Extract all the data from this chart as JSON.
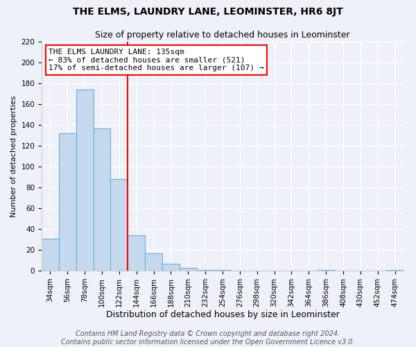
{
  "title": "THE ELMS, LAUNDRY LANE, LEOMINSTER, HR6 8JT",
  "subtitle": "Size of property relative to detached houses in Leominster",
  "xlabel": "Distribution of detached houses by size in Leominster",
  "ylabel": "Number of detached properties",
  "bar_labels": [
    "34sqm",
    "56sqm",
    "78sqm",
    "100sqm",
    "122sqm",
    "144sqm",
    "166sqm",
    "188sqm",
    "210sqm",
    "232sqm",
    "254sqm",
    "276sqm",
    "298sqm",
    "320sqm",
    "342sqm",
    "364sqm",
    "386sqm",
    "408sqm",
    "430sqm",
    "452sqm",
    "474sqm"
  ],
  "bar_values": [
    31,
    132,
    174,
    137,
    88,
    34,
    17,
    7,
    3,
    1,
    1,
    0,
    0,
    0,
    0,
    0,
    1,
    0,
    0,
    0,
    1
  ],
  "bar_color": "#c5d9ee",
  "bar_edge_color": "#6baed6",
  "vline_x": 4.5,
  "vline_color": "red",
  "ylim": [
    0,
    220
  ],
  "yticks": [
    0,
    20,
    40,
    60,
    80,
    100,
    120,
    140,
    160,
    180,
    200,
    220
  ],
  "annotation_title": "THE ELMS LAUNDRY LANE: 135sqm",
  "annotation_line1": "← 83% of detached houses are smaller (521)",
  "annotation_line2": "17% of semi-detached houses are larger (107) →",
  "annotation_box_color": "white",
  "annotation_box_edge": "red",
  "footer_line1": "Contains HM Land Registry data © Crown copyright and database right 2024.",
  "footer_line2": "Contains public sector information licensed under the Open Government Licence v3.0.",
  "title_fontsize": 10,
  "subtitle_fontsize": 9,
  "xlabel_fontsize": 9,
  "ylabel_fontsize": 8,
  "tick_fontsize": 7.5,
  "footer_fontsize": 7,
  "annotation_fontsize": 8,
  "background_color": "#eef2f8",
  "grid_color": "#ffffff"
}
